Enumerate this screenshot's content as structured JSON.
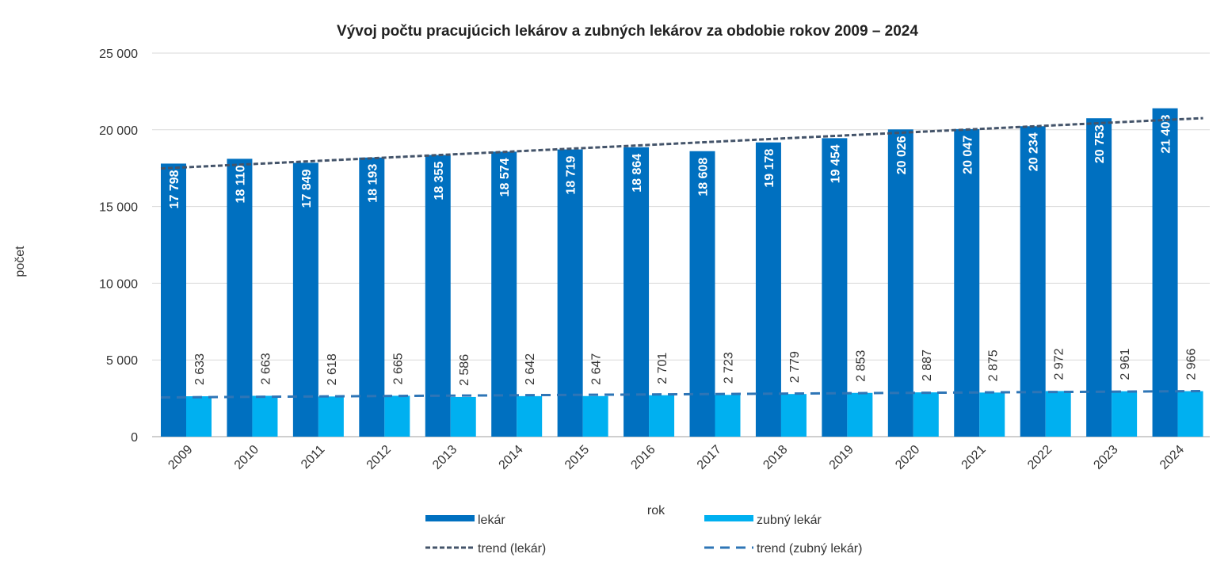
{
  "chart_data": {
    "type": "bar",
    "title": "Vývoj počtu pracujúcich lekárov a zubných lekárov za obdobie rokov 2009 – 2024",
    "xlabel": "rok",
    "ylabel": "počet",
    "ylim": [
      0,
      25000
    ],
    "yticks": [
      0,
      5000,
      10000,
      15000,
      20000,
      25000
    ],
    "ytick_labels": [
      "0",
      "5 000",
      "10 000",
      "15 000",
      "20 000",
      "25 000"
    ],
    "grid": true,
    "legend_position": "bottom",
    "categories": [
      "2009",
      "2010",
      "2011",
      "2012",
      "2013",
      "2014",
      "2015",
      "2016",
      "2017",
      "2018",
      "2019",
      "2020",
      "2021",
      "2022",
      "2023",
      "2024"
    ],
    "series": [
      {
        "name": "lekár",
        "color": "#0070C0",
        "values": [
          17798,
          18110,
          17849,
          18193,
          18355,
          18574,
          18719,
          18864,
          18608,
          19178,
          19454,
          20026,
          20047,
          20234,
          20753,
          21403
        ],
        "labels": [
          "17 798",
          "18 110",
          "17 849",
          "18 193",
          "18 355",
          "18 574",
          "18 719",
          "18 864",
          "18 608",
          "19 178",
          "19 454",
          "20 026",
          "20 047",
          "20 234",
          "20 753",
          "21 403"
        ]
      },
      {
        "name": "zubný lekár",
        "color": "#00B0F0",
        "values": [
          2633,
          2663,
          2618,
          2665,
          2586,
          2642,
          2647,
          2701,
          2723,
          2779,
          2853,
          2887,
          2875,
          2972,
          2961,
          2966
        ],
        "labels": [
          "2 633",
          "2 663",
          "2 618",
          "2 665",
          "2 586",
          "2 642",
          "2 647",
          "2 701",
          "2 723",
          "2 779",
          "2 853",
          "2 887",
          "2 875",
          "2 972",
          "2 961",
          "2 966"
        ]
      }
    ],
    "trendlines": [
      {
        "name": "trend (lekár)",
        "color": "#44546A",
        "start": 17480,
        "end": 20760
      },
      {
        "name": "trend (zubný lekár)",
        "color": "#2E75B6",
        "start": 2560,
        "end": 2970
      }
    ]
  }
}
